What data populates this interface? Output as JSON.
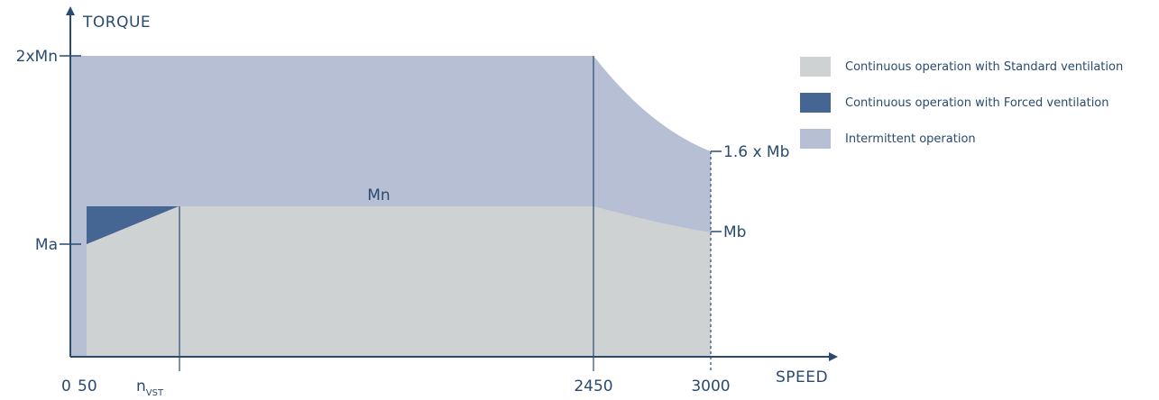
{
  "chart_data": {
    "type": "area",
    "title": "",
    "xlabel": "SPEED",
    "ylabel": "TORQUE",
    "x_ticks": [
      "0",
      "50",
      "2450",
      "3000"
    ],
    "x_marker": {
      "label": "n",
      "subscript": "VST"
    },
    "y_ticks": [
      "Ma",
      "2xMn"
    ],
    "annotations": [
      "Mn",
      "1.6 x Mb",
      "Mb"
    ],
    "legend_position": "right",
    "series": [
      {
        "name": "Continuous operation with Standard ventilation",
        "color": "#cfd2d2"
      },
      {
        "name": "Continuous operation with Forced ventilation",
        "color": "#456592"
      },
      {
        "name": "Intermittent operation",
        "color": "#b7bfd4"
      }
    ]
  }
}
